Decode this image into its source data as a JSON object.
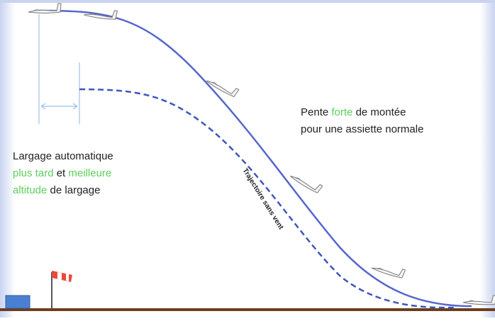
{
  "right_note": {
    "line1": [
      "Pente",
      "forte",
      "de montée"
    ],
    "line2": "pour une assiette normale"
  },
  "left_note": {
    "line1": "Largage automatique",
    "line2": [
      "plus tard",
      "et",
      "meilleure"
    ],
    "line3": [
      "altitude",
      "de largage"
    ]
  },
  "path_label": "Trajectoire sans vent"
}
